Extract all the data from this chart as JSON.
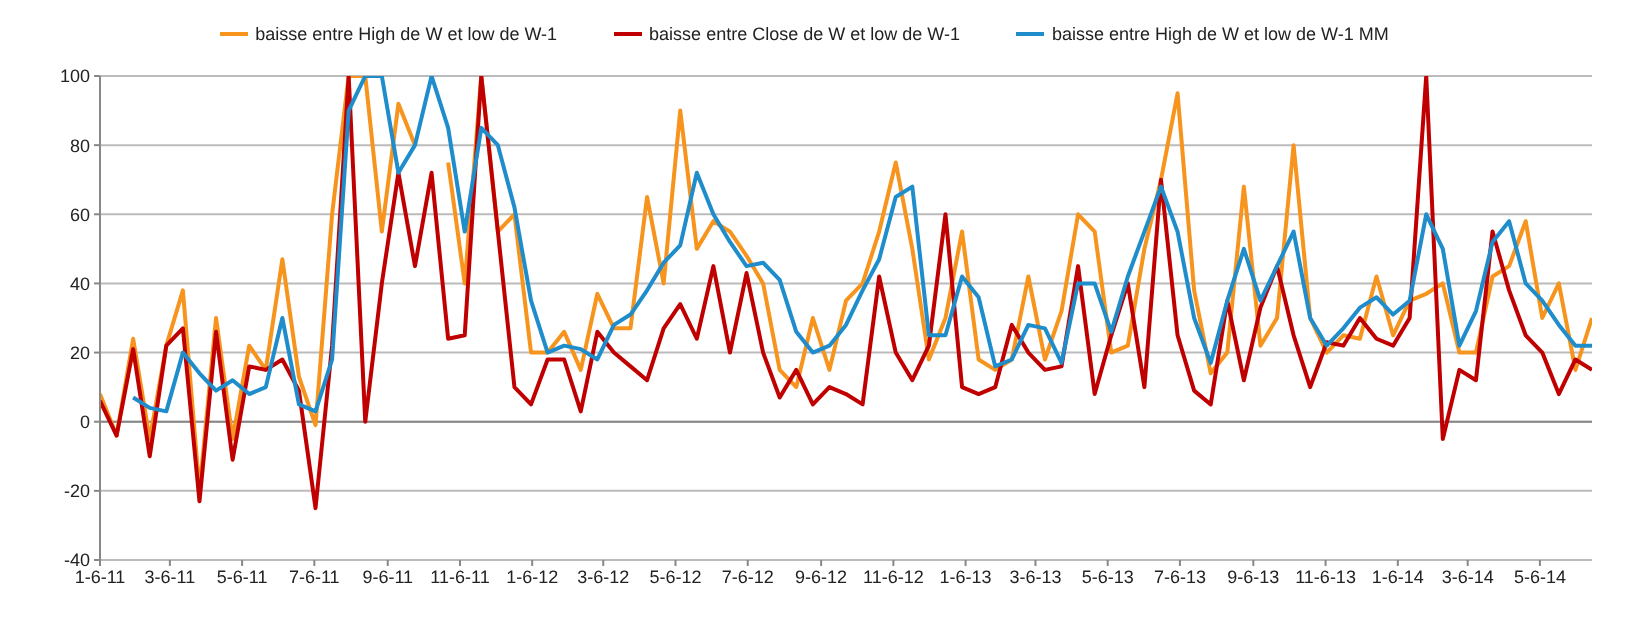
{
  "chart_data": {
    "type": "line",
    "x": [
      "2011-01-06",
      "2011-01-20",
      "2011-02-03",
      "2011-02-17",
      "2011-03-03",
      "2011-03-17",
      "2011-03-31",
      "2011-04-14",
      "2011-04-28",
      "2011-05-12",
      "2011-05-26",
      "2011-06-09",
      "2011-06-23",
      "2011-07-07",
      "2011-07-21",
      "2011-08-04",
      "2011-08-18",
      "2011-09-01",
      "2011-09-15",
      "2011-09-29",
      "2011-10-13",
      "2011-10-27",
      "2011-11-10",
      "2011-11-24",
      "2011-12-08",
      "2011-12-22",
      "2012-01-05",
      "2012-01-19",
      "2012-02-02",
      "2012-02-16",
      "2012-03-01",
      "2012-03-15",
      "2012-03-29",
      "2012-04-12",
      "2012-04-26",
      "2012-05-10",
      "2012-05-24",
      "2012-06-07",
      "2012-06-21",
      "2012-07-05",
      "2012-07-19",
      "2012-08-02",
      "2012-08-16",
      "2012-08-30",
      "2012-09-13",
      "2012-09-27",
      "2012-10-11",
      "2012-10-25",
      "2012-11-08",
      "2012-11-22",
      "2012-12-06",
      "2012-12-20",
      "2013-01-03",
      "2013-01-17",
      "2013-01-31",
      "2013-02-14",
      "2013-02-28",
      "2013-03-14",
      "2013-03-28",
      "2013-04-11",
      "2013-04-25",
      "2013-05-09",
      "2013-05-23",
      "2013-06-06",
      "2013-06-20",
      "2013-07-04",
      "2013-07-18",
      "2013-08-01",
      "2013-08-15",
      "2013-08-29",
      "2013-09-12",
      "2013-09-26",
      "2013-10-10",
      "2013-10-24",
      "2013-11-07",
      "2013-11-21",
      "2013-12-05",
      "2013-12-19",
      "2014-01-02",
      "2014-01-16",
      "2014-01-30",
      "2014-02-13",
      "2014-02-27",
      "2014-03-13",
      "2014-03-27",
      "2014-04-10",
      "2014-04-24",
      "2014-05-08",
      "2014-05-22",
      "2014-06-05",
      "2014-06-19"
    ],
    "series": [
      {
        "name": "baisse entre High de W et low de W-1",
        "color": "#f7941d",
        "values": [
          8,
          -4,
          24,
          -5,
          22,
          38,
          -20,
          30,
          -5,
          22,
          15,
          47,
          13,
          -1,
          60,
          100,
          100,
          55,
          92,
          80,
          null,
          75,
          40,
          100,
          55,
          60,
          20,
          20,
          26,
          15,
          37,
          27,
          27,
          65,
          40,
          90,
          50,
          58,
          55,
          48,
          40,
          15,
          10,
          30,
          15,
          35,
          40,
          55,
          75,
          50,
          18,
          30,
          55,
          18,
          15,
          18,
          42,
          18,
          32,
          60,
          55,
          20,
          22,
          50,
          70,
          95,
          38,
          14,
          20,
          68,
          22,
          30,
          80,
          30,
          20,
          25,
          24,
          42,
          25,
          35,
          37,
          40,
          20,
          20,
          42,
          45,
          58,
          30,
          40,
          15,
          30
        ]
      },
      {
        "name": "baisse entre Close de W et low de W-1",
        "color": "#c00000",
        "values": [
          6,
          -4,
          21,
          -10,
          22,
          27,
          -23,
          26,
          -11,
          16,
          15,
          18,
          9,
          -25,
          22,
          100,
          0,
          40,
          72,
          45,
          72,
          24,
          25,
          100,
          55,
          10,
          5,
          18,
          18,
          3,
          26,
          20,
          16,
          12,
          27,
          34,
          24,
          45,
          20,
          43,
          20,
          7,
          15,
          5,
          10,
          8,
          5,
          42,
          20,
          12,
          22,
          60,
          10,
          8,
          10,
          28,
          20,
          15,
          16,
          45,
          8,
          25,
          40,
          10,
          70,
          25,
          9,
          5,
          35,
          12,
          33,
          45,
          25,
          10,
          23,
          22,
          30,
          24,
          22,
          30,
          100,
          -5,
          15,
          12,
          55,
          38,
          25,
          20,
          8,
          18,
          15
        ]
      },
      {
        "name": "baisse entre High de W et low de W-1 MM",
        "color": "#1f8dcc",
        "values": [
          null,
          null,
          7,
          4,
          3,
          20,
          14,
          9,
          12,
          8,
          10,
          30,
          5,
          3,
          18,
          90,
          100,
          100,
          72,
          80,
          100,
          85,
          55,
          85,
          80,
          62,
          35,
          20,
          22,
          21,
          18,
          28,
          31,
          38,
          46,
          51,
          72,
          60,
          52,
          45,
          46,
          41,
          26,
          20,
          22,
          28,
          38,
          47,
          65,
          68,
          25,
          25,
          42,
          36,
          16,
          18,
          28,
          27,
          17,
          40,
          40,
          26,
          42,
          55,
          68,
          55,
          30,
          17,
          35,
          50,
          35,
          45,
          55,
          30,
          22,
          27,
          33,
          36,
          31,
          35,
          60,
          50,
          22,
          32,
          52,
          58,
          40,
          35,
          28,
          22,
          22
        ]
      }
    ],
    "xlim": [
      "2011-01-06",
      "2014-06-19"
    ],
    "xticks": [
      {
        "value": "2011-01-06",
        "label": "1-6-11"
      },
      {
        "value": "2011-03-06",
        "label": "3-6-11"
      },
      {
        "value": "2011-05-06",
        "label": "5-6-11"
      },
      {
        "value": "2011-07-06",
        "label": "7-6-11"
      },
      {
        "value": "2011-09-06",
        "label": "9-6-11"
      },
      {
        "value": "2011-11-06",
        "label": "11-6-11"
      },
      {
        "value": "2012-01-06",
        "label": "1-6-12"
      },
      {
        "value": "2012-03-06",
        "label": "3-6-12"
      },
      {
        "value": "2012-05-06",
        "label": "5-6-12"
      },
      {
        "value": "2012-07-06",
        "label": "7-6-12"
      },
      {
        "value": "2012-09-06",
        "label": "9-6-12"
      },
      {
        "value": "2012-11-06",
        "label": "11-6-12"
      },
      {
        "value": "2013-01-06",
        "label": "1-6-13"
      },
      {
        "value": "2013-03-06",
        "label": "3-6-13"
      },
      {
        "value": "2013-05-06",
        "label": "5-6-13"
      },
      {
        "value": "2013-07-06",
        "label": "7-6-13"
      },
      {
        "value": "2013-09-06",
        "label": "9-6-13"
      },
      {
        "value": "2013-11-06",
        "label": "11-6-13"
      },
      {
        "value": "2014-01-06",
        "label": "1-6-14"
      },
      {
        "value": "2014-03-06",
        "label": "3-6-14"
      },
      {
        "value": "2014-05-06",
        "label": "5-6-14"
      }
    ],
    "ylim": [
      -40,
      100
    ],
    "yticks": [
      -40,
      -20,
      0,
      20,
      40,
      60,
      80,
      100
    ],
    "grid": "y",
    "legend": "top"
  }
}
